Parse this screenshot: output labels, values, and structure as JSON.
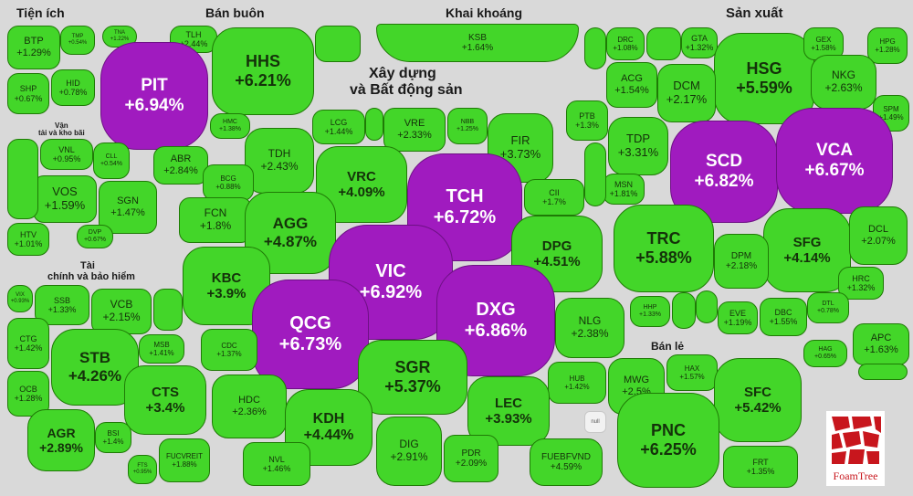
{
  "groups": {
    "tienich": "Tiện ích",
    "banbuon": "Bán buôn",
    "khaikhoang": "Khai khoáng",
    "sanxuat": "Sản xuất",
    "xaydung1": "Xây dựng",
    "xaydung2": "và Bất động sản",
    "vantai1": "Vận",
    "vantai2": "tải và kho bãi",
    "taichinh1": "Tài",
    "taichinh2": "chính và bảo hiểm",
    "banle": "Bán lẻ"
  },
  "brand": {
    "name": "FoamTree",
    "accent": "#c8161d"
  },
  "colors": {
    "up": "#43d629",
    "ceiling": "#a01bbf"
  },
  "chart_data": {
    "type": "treemap",
    "title": "",
    "metric": "percent price change",
    "stocks": [
      {
        "ticker": "BTP",
        "change": "+1.29%",
        "group": "Tiện ích",
        "status": "up"
      },
      {
        "ticker": "TMP",
        "change": "+0.54%",
        "group": "Tiện ích",
        "status": "up"
      },
      {
        "ticker": "HID",
        "change": "+0.78%",
        "group": "Tiện ích",
        "status": "up"
      },
      {
        "ticker": "SHP",
        "change": "+0.67%",
        "group": "Tiện ích",
        "status": "up"
      },
      {
        "ticker": "PIT",
        "change": "+6.94%",
        "group": "Bán buôn",
        "status": "ceiling"
      },
      {
        "ticker": "HHS",
        "change": "+6.21%",
        "group": "Bán buôn",
        "status": "up"
      },
      {
        "ticker": "TLH",
        "change": "+2.44%",
        "group": "Bán buôn",
        "status": "up"
      },
      {
        "ticker": "TNA",
        "change": "+1.22%",
        "group": "Bán buôn",
        "status": "up"
      },
      {
        "ticker": "HMC",
        "change": "+1.38%",
        "group": "Bán buôn",
        "status": "up"
      },
      {
        "ticker": "ABR",
        "change": "+2.84%",
        "group": "Bán buôn",
        "status": "up"
      },
      {
        "ticker": "KSB",
        "change": "+1.64%",
        "group": "Khai khoáng",
        "status": "up"
      },
      {
        "ticker": "DRC",
        "change": "+1.08%",
        "group": "Sản xuất",
        "status": "up"
      },
      {
        "ticker": "GTA",
        "change": "+1.32%",
        "group": "Sản xuất",
        "status": "up"
      },
      {
        "ticker": "GEX",
        "change": "+1.58%",
        "group": "Sản xuất",
        "status": "up"
      },
      {
        "ticker": "HPG",
        "change": "+1.28%",
        "group": "Sản xuất",
        "status": "up"
      },
      {
        "ticker": "HSG",
        "change": "+5.59%",
        "group": "Sản xuất",
        "status": "up"
      },
      {
        "ticker": "NKG",
        "change": "+2.63%",
        "group": "Sản xuất",
        "status": "up"
      },
      {
        "ticker": "ACG",
        "change": "+1.54%",
        "group": "Sản xuất",
        "status": "up"
      },
      {
        "ticker": "DCM",
        "change": "+2.17%",
        "group": "Sản xuất",
        "status": "up"
      },
      {
        "ticker": "PTB",
        "change": "+1.3%",
        "group": "Sản xuất",
        "status": "up"
      },
      {
        "ticker": "TDP",
        "change": "+3.31%",
        "group": "Sản xuất",
        "status": "up"
      },
      {
        "ticker": "SCD",
        "change": "+6.82%",
        "group": "Sản xuất",
        "status": "ceiling"
      },
      {
        "ticker": "VCA",
        "change": "+6.67%",
        "group": "Sản xuất",
        "status": "ceiling"
      },
      {
        "ticker": "MSN",
        "change": "+1.81%",
        "group": "Sản xuất",
        "status": "up"
      },
      {
        "ticker": "TRC",
        "change": "+5.88%",
        "group": "Sản xuất",
        "status": "up"
      },
      {
        "ticker": "SFG",
        "change": "+4.14%",
        "group": "Sản xuất",
        "status": "up"
      },
      {
        "ticker": "DCL",
        "change": "+2.07%",
        "group": "Sản xuất",
        "status": "up"
      },
      {
        "ticker": "DPM",
        "change": "+2.18%",
        "group": "Sản xuất",
        "status": "up"
      },
      {
        "ticker": "HRC",
        "change": "+1.32%",
        "group": "Sản xuất",
        "status": "up"
      },
      {
        "ticker": "HHP",
        "change": "+1.33%",
        "group": "Sản xuất",
        "status": "up"
      },
      {
        "ticker": "EVE",
        "change": "+1.19%",
        "group": "Sản xuất",
        "status": "up"
      },
      {
        "ticker": "DBC",
        "change": "+1.55%",
        "group": "Sản xuất",
        "status": "up"
      },
      {
        "ticker": "DTL",
        "change": "+0.78%",
        "group": "Sản xuất",
        "status": "up"
      },
      {
        "ticker": "APC",
        "change": "+1.63%",
        "group": "Sản xuất",
        "status": "up"
      },
      {
        "ticker": "HAG",
        "change": "+0.65%",
        "group": "Sản xuất",
        "status": "up"
      },
      {
        "ticker": "SPM",
        "change": "+1.49%",
        "group": "Sản xuất",
        "status": "up"
      },
      {
        "ticker": "LCG",
        "change": "+1.44%",
        "group": "Xây dựng và Bất động sản",
        "status": "up"
      },
      {
        "ticker": "VRE",
        "change": "+2.33%",
        "group": "Xây dựng và Bất động sản",
        "status": "up"
      },
      {
        "ticker": "NBB",
        "change": "+1.25%",
        "group": "Xây dựng và Bất động sản",
        "status": "up"
      },
      {
        "ticker": "FIR",
        "change": "+3.73%",
        "group": "Xây dựng và Bất động sản",
        "status": "up"
      },
      {
        "ticker": "TDH",
        "change": "+2.43%",
        "group": "Xây dựng và Bất động sản",
        "status": "up"
      },
      {
        "ticker": "VRC",
        "change": "+4.09%",
        "group": "Xây dựng và Bất động sản",
        "status": "up"
      },
      {
        "ticker": "BCG",
        "change": "+0.88%",
        "group": "Xây dựng và Bất động sản",
        "status": "up"
      },
      {
        "ticker": "TCH",
        "change": "+6.72%",
        "group": "Xây dựng và Bất động sản",
        "status": "ceiling"
      },
      {
        "ticker": "CII",
        "change": "+1.7%",
        "group": "Xây dựng và Bất động sản",
        "status": "up"
      },
      {
        "ticker": "FCN",
        "change": "+1.8%",
        "group": "Xây dựng và Bất động sản",
        "status": "up"
      },
      {
        "ticker": "AGG",
        "change": "+4.87%",
        "group": "Xây dựng và Bất động sản",
        "status": "up"
      },
      {
        "ticker": "DPG",
        "change": "+4.51%",
        "group": "Xây dựng và Bất động sản",
        "status": "up"
      },
      {
        "ticker": "KBC",
        "change": "+3.9%",
        "group": "Xây dựng và Bất động sản",
        "status": "up"
      },
      {
        "ticker": "VIC",
        "change": "+6.92%",
        "group": "Xây dựng và Bất động sản",
        "status": "ceiling"
      },
      {
        "ticker": "QCG",
        "change": "+6.73%",
        "group": "Xây dựng và Bất động sản",
        "status": "ceiling"
      },
      {
        "ticker": "DXG",
        "change": "+6.86%",
        "group": "Xây dựng và Bất động sản",
        "status": "ceiling"
      },
      {
        "ticker": "CDC",
        "change": "+1.37%",
        "group": "Xây dựng và Bất động sản",
        "status": "up"
      },
      {
        "ticker": "NLG",
        "change": "+2.38%",
        "group": "Xây dựng và Bất động sản",
        "status": "up"
      },
      {
        "ticker": "SGR",
        "change": "+5.37%",
        "group": "Xây dựng và Bất động sản",
        "status": "up"
      },
      {
        "ticker": "HDC",
        "change": "+2.36%",
        "group": "Xây dựng và Bất động sản",
        "status": "up"
      },
      {
        "ticker": "HUB",
        "change": "+1.42%",
        "group": "Xây dựng và Bất động sản",
        "status": "up"
      },
      {
        "ticker": "KDH",
        "change": "+4.44%",
        "group": "Xây dựng và Bất động sản",
        "status": "up"
      },
      {
        "ticker": "LEC",
        "change": "+3.93%",
        "group": "Xây dựng và Bất động sản",
        "status": "up"
      },
      {
        "ticker": "DIG",
        "change": "+2.91%",
        "group": "Xây dựng và Bất động sản",
        "status": "up"
      },
      {
        "ticker": "PDR",
        "change": "+2.09%",
        "group": "Xây dựng và Bất động sản",
        "status": "up"
      },
      {
        "ticker": "NVL",
        "change": "+1.46%",
        "group": "Xây dựng và Bất động sản",
        "status": "up"
      },
      {
        "ticker": "FUEBFVND",
        "change": "+4.59%",
        "group": "Xây dựng và Bất động sản",
        "status": "up"
      },
      {
        "ticker": "null",
        "change": "",
        "group": "Xây dựng và Bất động sản",
        "status": "nil"
      },
      {
        "ticker": "VNL",
        "change": "+0.95%",
        "group": "Vận tải và kho bãi",
        "status": "up"
      },
      {
        "ticker": "CLL",
        "change": "+0.54%",
        "group": "Vận tải và kho bãi",
        "status": "up"
      },
      {
        "ticker": "VOS",
        "change": "+1.59%",
        "group": "Vận tải và kho bãi",
        "status": "up"
      },
      {
        "ticker": "SGN",
        "change": "+1.47%",
        "group": "Vận tải và kho bãi",
        "status": "up"
      },
      {
        "ticker": "HTV",
        "change": "+1.01%",
        "group": "Vận tải và kho bãi",
        "status": "up"
      },
      {
        "ticker": "DVP",
        "change": "+0.67%",
        "group": "Vận tải và kho bãi",
        "status": "up"
      },
      {
        "ticker": "SSB",
        "change": "+1.33%",
        "group": "Tài chính và bảo hiểm",
        "status": "up"
      },
      {
        "ticker": "VCB",
        "change": "+2.15%",
        "group": "Tài chính và bảo hiểm",
        "status": "up"
      },
      {
        "ticker": "VIX",
        "change": "+0.93%",
        "group": "Tài chính và bảo hiểm",
        "status": "up"
      },
      {
        "ticker": "CTG",
        "change": "+1.42%",
        "group": "Tài chính và bảo hiểm",
        "status": "up"
      },
      {
        "ticker": "STB",
        "change": "+4.26%",
        "group": "Tài chính và bảo hiểm",
        "status": "up"
      },
      {
        "ticker": "MSB",
        "change": "+1.41%",
        "group": "Tài chính và bảo hiểm",
        "status": "up"
      },
      {
        "ticker": "OCB",
        "change": "+1.28%",
        "group": "Tài chính và bảo hiểm",
        "status": "up"
      },
      {
        "ticker": "CTS",
        "change": "+3.4%",
        "group": "Tài chính và bảo hiểm",
        "status": "up"
      },
      {
        "ticker": "AGR",
        "change": "+2.89%",
        "group": "Tài chính và bảo hiểm",
        "status": "up"
      },
      {
        "ticker": "BSI",
        "change": "+1.4%",
        "group": "Tài chính và bảo hiểm",
        "status": "up"
      },
      {
        "ticker": "FTS",
        "change": "+0.95%",
        "group": "Tài chính và bảo hiểm",
        "status": "up"
      },
      {
        "ticker": "FUCVREIT",
        "change": "+1.88%",
        "group": "Tài chính và bảo hiểm",
        "status": "up"
      },
      {
        "ticker": "HAX",
        "change": "+1.57%",
        "group": "Bán lẻ",
        "status": "up"
      },
      {
        "ticker": "MWG",
        "change": "+2.5%",
        "group": "Bán lẻ",
        "status": "up"
      },
      {
        "ticker": "SFC",
        "change": "+5.42%",
        "group": "Bán lẻ",
        "status": "up"
      },
      {
        "ticker": "PNC",
        "change": "+6.25%",
        "group": "Bán lẻ",
        "status": "up"
      },
      {
        "ticker": "FRT",
        "change": "+1.35%",
        "group": "Bán lẻ",
        "status": "up"
      }
    ]
  }
}
